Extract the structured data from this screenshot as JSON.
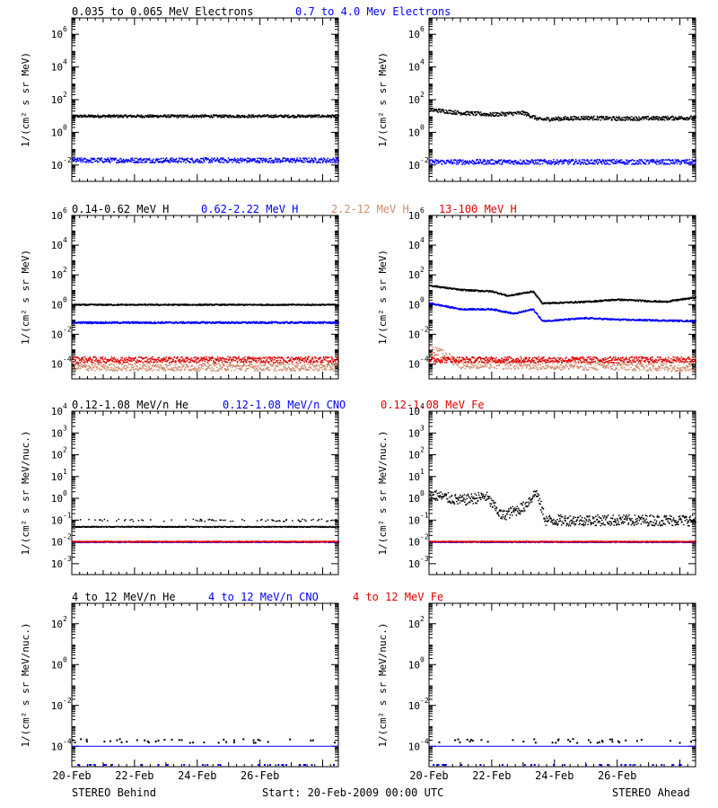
{
  "colors": {
    "black": "#000000",
    "blue": "#0000ff",
    "tan": "#d08a6c",
    "red": "#e00000"
  },
  "footer": {
    "left": "STEREO Behind",
    "center": "Start: 20-Feb-2009 00:00 UTC",
    "right": "STEREO Ahead"
  },
  "chart_data": [
    {
      "type": "scatter",
      "title": [
        "0.035 to 0.065 MeV Electrons",
        "0.7 to 4.0 Mev Electrons"
      ],
      "ylabel": "1/(cm² s sr MeV)",
      "scale": "log",
      "yticks_exp": [
        -2,
        0,
        2,
        4,
        6
      ],
      "ylim_exp": [
        -3,
        7
      ],
      "xticks": [
        "20-Feb",
        "22-Feb",
        "24-Feb",
        "26-Feb"
      ],
      "xlim_days": [
        20,
        28.5
      ],
      "panels": [
        {
          "instrument": "STEREO Behind",
          "series": [
            {
              "name": "0.035 to 0.065 MeV Electrons",
              "color": "black",
              "log_value": 1.0,
              "spread": 0.08
            },
            {
              "name": "0.7 to 4.0 Mev Electrons",
              "color": "blue",
              "log_value": -1.7,
              "spread": 0.15
            }
          ]
        },
        {
          "instrument": "STEREO Ahead",
          "series": [
            {
              "name": "0.035 to 0.065 MeV Electrons",
              "color": "black",
              "profile": [
                [
                  20,
                  1.4
                ],
                [
                  21,
                  1.2
                ],
                [
                  22,
                  1.1
                ],
                [
                  23,
                  1.2
                ],
                [
                  23.5,
                  0.8
                ],
                [
                  25,
                  0.9
                ],
                [
                  26,
                  0.85
                ],
                [
                  28.5,
                  0.9
                ]
              ],
              "spread": 0.12
            },
            {
              "name": "0.7 to 4.0 Mev Electrons",
              "color": "blue",
              "log_value": -1.8,
              "spread": 0.15
            }
          ]
        }
      ]
    },
    {
      "type": "scatter",
      "title": [
        "0.14-0.62 MeV H",
        "0.62-2.22 MeV H",
        "2.2-12 MeV H",
        "13-100 MeV H"
      ],
      "ylabel": "1/(cm² s sr MeV)",
      "scale": "log",
      "yticks_exp": [
        -4,
        -2,
        0,
        2,
        4,
        6
      ],
      "ylim_exp": [
        -5,
        6
      ],
      "xticks": [
        "20-Feb",
        "22-Feb",
        "24-Feb",
        "26-Feb"
      ],
      "xlim_days": [
        20,
        28.5
      ],
      "panels": [
        {
          "instrument": "STEREO Behind",
          "series": [
            {
              "name": "0.14-0.62 MeV H",
              "color": "black",
              "log_value": 0.0,
              "spread": 0.04
            },
            {
              "name": "0.62-2.22 MeV H",
              "color": "blue",
              "log_value": -1.2,
              "spread": 0.06
            },
            {
              "name": "2.2-12 MeV H",
              "color": "tan",
              "log_value": -4.2,
              "spread": 0.25
            },
            {
              "name": "13-100 MeV H",
              "color": "red",
              "log_value": -3.7,
              "spread": 0.2
            }
          ]
        },
        {
          "instrument": "STEREO Ahead",
          "series": [
            {
              "name": "0.14-0.62 MeV H",
              "color": "black",
              "profile": [
                [
                  20,
                  1.3
                ],
                [
                  21,
                  1.0
                ],
                [
                  22,
                  0.9
                ],
                [
                  22.5,
                  0.6
                ],
                [
                  23.3,
                  0.9
                ],
                [
                  23.6,
                  0.1
                ],
                [
                  25,
                  0.2
                ],
                [
                  26,
                  0.35
                ],
                [
                  27.5,
                  0.2
                ],
                [
                  28.5,
                  0.5
                ]
              ],
              "spread": 0.05
            },
            {
              "name": "0.62-2.22 MeV H",
              "color": "blue",
              "profile": [
                [
                  20,
                  0.1
                ],
                [
                  21,
                  -0.3
                ],
                [
                  22,
                  -0.3
                ],
                [
                  22.7,
                  -0.6
                ],
                [
                  23.3,
                  -0.3
                ],
                [
                  23.6,
                  -1.1
                ],
                [
                  25,
                  -0.9
                ],
                [
                  26,
                  -1.0
                ],
                [
                  28.5,
                  -1.1
                ]
              ],
              "spread": 0.05
            },
            {
              "name": "2.2-12 MeV H",
              "color": "tan",
              "profile": [
                [
                  20,
                  -3.0
                ],
                [
                  20.5,
                  -3.4
                ],
                [
                  21,
                  -4.0
                ],
                [
                  28.5,
                  -4.2
                ]
              ],
              "spread": 0.3
            },
            {
              "name": "13-100 MeV H",
              "color": "red",
              "log_value": -3.7,
              "spread": 0.2
            }
          ]
        }
      ]
    },
    {
      "type": "scatter",
      "title": [
        "0.12-1.08 MeV/n He",
        "0.12-1.08 MeV/n CNO",
        "0.12-1.08 MeV Fe"
      ],
      "ylabel": "1/(cm² s sr MeV/nuc.)",
      "scale": "log",
      "yticks_exp": [
        -3,
        -2,
        -1,
        0,
        1,
        2,
        3,
        4
      ],
      "ylim_exp": [
        -3.5,
        4
      ],
      "xticks": [
        "20-Feb",
        "22-Feb",
        "24-Feb",
        "26-Feb"
      ],
      "xlim_days": [
        20,
        28.5
      ],
      "panels": [
        {
          "instrument": "STEREO Behind",
          "series": [
            {
              "name": "0.12-1.08 MeV/n He",
              "color": "black",
              "log_value": -1.3,
              "spread": 0.02,
              "scatter_above": -1.0
            },
            {
              "name": "0.12-1.08 MeV/n CNO",
              "color": "blue",
              "log_value": -2.0,
              "spread": 0.02
            },
            {
              "name": "0.12-1.08 MeV Fe",
              "color": "red",
              "log_value": -1.98,
              "spread": 0.02
            }
          ]
        },
        {
          "instrument": "STEREO Ahead",
          "series": [
            {
              "name": "0.12-1.08 MeV/n He",
              "color": "black",
              "profile": [
                [
                  20,
                  0.2
                ],
                [
                  21,
                  -0.1
                ],
                [
                  21.8,
                  0.1
                ],
                [
                  22.3,
                  -0.8
                ],
                [
                  23,
                  -0.4
                ],
                [
                  23.4,
                  0.3
                ],
                [
                  23.7,
                  -1.0
                ],
                [
                  28.5,
                  -1.0
                ]
              ],
              "spread": 0.25
            },
            {
              "name": "0.12-1.08 MeV/n CNO",
              "color": "blue",
              "log_value": -2.0,
              "spread": 0.02
            },
            {
              "name": "0.12-1.08 MeV Fe",
              "color": "red",
              "log_value": -1.98,
              "spread": 0.02
            }
          ]
        }
      ]
    },
    {
      "type": "scatter",
      "title": [
        "4 to 12 MeV/n He",
        "4 to 12 MeV/n CNO",
        "4 to 12 MeV Fe"
      ],
      "ylabel": "1/(cm² s sr MeV/nuc.)",
      "scale": "log",
      "yticks_exp": [
        -4,
        -2,
        0,
        2
      ],
      "ylim_exp": [
        -5,
        3
      ],
      "xticks": [
        "20-Feb",
        "22-Feb",
        "24-Feb",
        "26-Feb"
      ],
      "xlim_days": [
        20,
        28.5
      ],
      "panels": [
        {
          "instrument": "STEREO Behind",
          "series": [
            {
              "name": "4 to 12 MeV/n He",
              "color": "black",
              "log_value": -3.7,
              "spread": 0.02,
              "sparse": true
            },
            {
              "name": "4 to 12 MeV/n CNO",
              "color": "blue",
              "log_value": -4.0,
              "spread": 0.0
            }
          ]
        },
        {
          "instrument": "STEREO Ahead",
          "series": [
            {
              "name": "4 to 12 MeV/n He",
              "color": "black",
              "log_value": -3.7,
              "spread": 0.02,
              "sparse": true
            },
            {
              "name": "4 to 12 MeV/n CNO",
              "color": "blue",
              "log_value": -4.0,
              "spread": 0.0
            }
          ]
        }
      ]
    }
  ]
}
